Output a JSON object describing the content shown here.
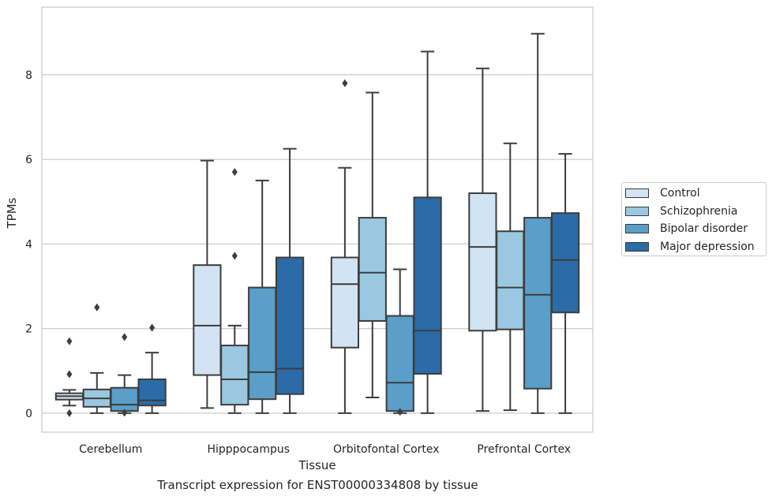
{
  "chart_data": {
    "type": "boxplot",
    "title": "",
    "caption": "Transcript expression for ENST00000334808 by tissue",
    "xlabel": "Tissue",
    "ylabel": "TPMs",
    "ylim": [
      -0.45,
      9.6
    ],
    "yticks": [
      0,
      2,
      4,
      6,
      8
    ],
    "ytick_labels": [
      "0",
      "2",
      "4",
      "6",
      "8"
    ],
    "grid": "horizontal",
    "legend_position": "right",
    "categories": [
      "Cerebellum",
      "Hipppocampus",
      "Orbitofontal Cortex",
      "Prefrontal Cortex"
    ],
    "series": [
      {
        "name": "Control",
        "color": "#d2e3f3",
        "boxes": [
          {
            "whislo": 0.18,
            "q1": 0.32,
            "med": 0.4,
            "q3": 0.47,
            "whishi": 0.55,
            "fliers": [
              0.0,
              0.92,
              1.7
            ]
          },
          {
            "whislo": 0.12,
            "q1": 0.9,
            "med": 2.07,
            "q3": 3.5,
            "whishi": 5.97,
            "fliers": []
          },
          {
            "whislo": 0.0,
            "q1": 1.55,
            "med": 3.05,
            "q3": 3.68,
            "whishi": 5.8,
            "fliers": [
              7.8
            ]
          },
          {
            "whislo": 0.05,
            "q1": 1.95,
            "med": 3.93,
            "q3": 5.2,
            "whishi": 8.15,
            "fliers": []
          }
        ]
      },
      {
        "name": "Schizophrenia",
        "color": "#9ac8e0",
        "boxes": [
          {
            "whislo": 0.0,
            "q1": 0.15,
            "med": 0.35,
            "q3": 0.56,
            "whishi": 0.95,
            "fliers": [
              2.5
            ]
          },
          {
            "whislo": 0.0,
            "q1": 0.2,
            "med": 0.8,
            "q3": 1.6,
            "whishi": 2.07,
            "fliers": [
              3.72,
              5.7
            ]
          },
          {
            "whislo": 0.37,
            "q1": 2.18,
            "med": 3.32,
            "q3": 4.62,
            "whishi": 7.58,
            "fliers": []
          },
          {
            "whislo": 0.07,
            "q1": 1.98,
            "med": 2.97,
            "q3": 4.3,
            "whishi": 6.38,
            "fliers": []
          }
        ]
      },
      {
        "name": "Bipolar disorder",
        "color": "#5a9ec9",
        "boxes": [
          {
            "whislo": 0.0,
            "q1": 0.05,
            "med": 0.2,
            "q3": 0.6,
            "whishi": 0.9,
            "fliers": [
              0.01,
              1.8
            ]
          },
          {
            "whislo": 0.0,
            "q1": 0.33,
            "med": 0.97,
            "q3": 2.97,
            "whishi": 5.5,
            "fliers": []
          },
          {
            "whislo": 0.0,
            "q1": 0.05,
            "med": 0.72,
            "q3": 2.3,
            "whishi": 3.4,
            "fliers": [
              0.03
            ]
          },
          {
            "whislo": 0.0,
            "q1": 0.58,
            "med": 2.8,
            "q3": 4.62,
            "whishi": 8.97,
            "fliers": []
          }
        ]
      },
      {
        "name": "Major depression",
        "color": "#2a6ba8",
        "boxes": [
          {
            "whislo": 0.0,
            "q1": 0.18,
            "med": 0.3,
            "q3": 0.8,
            "whishi": 1.43,
            "fliers": [
              2.02
            ]
          },
          {
            "whislo": 0.0,
            "q1": 0.45,
            "med": 1.05,
            "q3": 3.68,
            "whishi": 6.25,
            "fliers": []
          },
          {
            "whislo": 0.0,
            "q1": 0.93,
            "med": 1.95,
            "q3": 5.1,
            "whishi": 8.55,
            "fliers": []
          },
          {
            "whislo": 0.0,
            "q1": 2.38,
            "med": 3.62,
            "q3": 4.73,
            "whishi": 6.13,
            "fliers": []
          }
        ]
      }
    ]
  }
}
